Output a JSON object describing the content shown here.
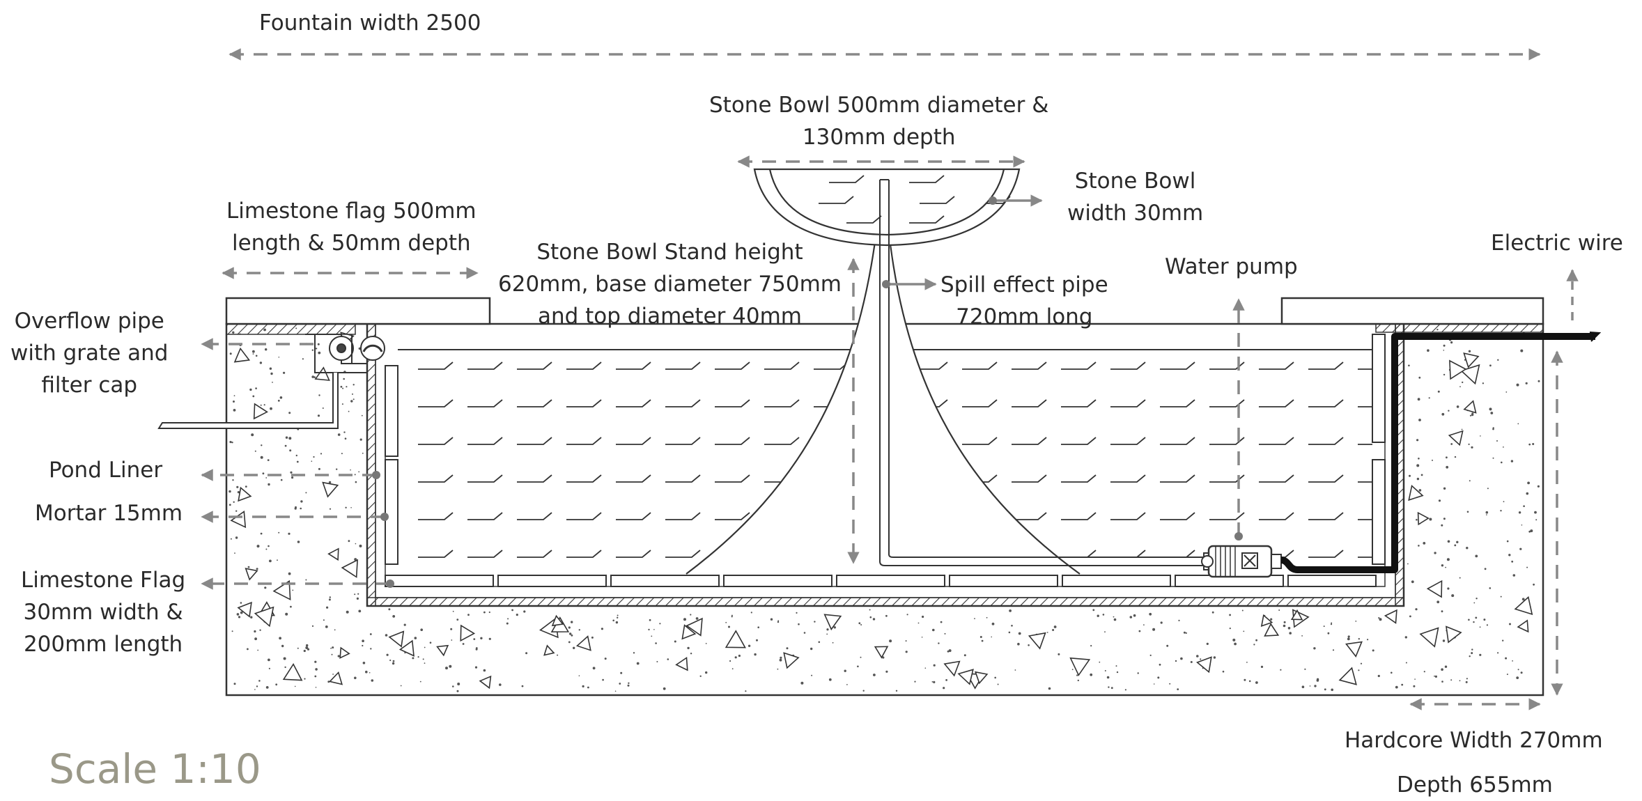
{
  "title": "",
  "labels": {
    "fountain_width": "Fountain width 2500",
    "stone_bowl_size": [
      "Stone Bowl 500mm diameter &",
      "130mm depth"
    ],
    "stone_bowl_width": [
      "Stone Bowl",
      "width 30mm"
    ],
    "limestone_flag_top": [
      "Limestone flag 500mm",
      "length & 50mm depth"
    ],
    "stand": [
      "Stone Bowl Stand height",
      "620mm, base diameter 750mm",
      "and top diameter 40mm"
    ],
    "spill_pipe": [
      "Spill effect pipe",
      "720mm long"
    ],
    "water_pump": "Water pump",
    "electric_wire": "Electric wire",
    "overflow_pipe": [
      "Overflow pipe",
      "with grate and",
      "filter cap"
    ],
    "pond_liner": "Pond Liner",
    "mortar": "Mortar 15mm",
    "limestone_flag_side": [
      "Limestone Flag",
      "30mm width &",
      "200mm length"
    ],
    "hardcore_width": "Hardcore Width 270mm",
    "depth": "Depth 655mm",
    "scale": "Scale 1:10"
  },
  "colors": {
    "line": "#333333",
    "dimension": "#888888",
    "scale_text": "#9a9888"
  }
}
